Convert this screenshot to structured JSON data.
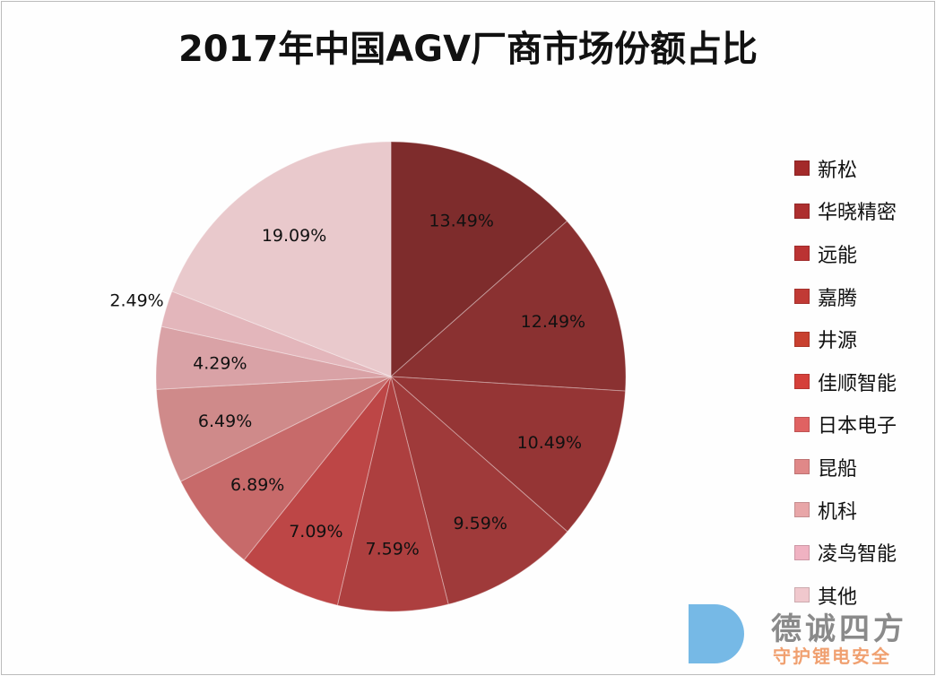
{
  "chart_data": {
    "type": "pie",
    "title": "2017年中国AGV厂商市场份额占比",
    "categories": [
      "新松",
      "华晓精密",
      "远能",
      "嘉腾",
      "井源",
      "佳顺智能",
      "日本电子",
      "昆船",
      "机科",
      "凌鸟智能",
      "其他"
    ],
    "values": [
      13.49,
      12.49,
      10.49,
      9.59,
      7.59,
      7.09,
      6.89,
      6.49,
      4.29,
      2.49,
      19.09
    ],
    "data_labels": [
      "13.49%",
      "12.49%",
      "10.49%",
      "9.59%",
      "7.59%",
      "7.09%",
      "6.89%",
      "6.49%",
      "4.29%",
      "2.49%",
      "19.09%"
    ],
    "slice_colors": [
      "#7e2c2c",
      "#8a3131",
      "#953535",
      "#9f3a3a",
      "#ad3f3f",
      "#bd4646",
      "#c76a6a",
      "#cf8a8a",
      "#d9a2a6",
      "#e3b6bb",
      "#e9c9cc"
    ],
    "legend_colors": [
      "#a32a2a",
      "#ad2f2f",
      "#bb3333",
      "#c13a35",
      "#c8402f",
      "#d5403a",
      "#e06262",
      "#e08888",
      "#e8a6a8",
      "#f0b2c2",
      "#f0c8cd"
    ],
    "start": "top",
    "direction": "clockwise",
    "legend_position": "right"
  },
  "watermark": {
    "brand": "德诚四方",
    "slogan": "守护锂电安全"
  }
}
